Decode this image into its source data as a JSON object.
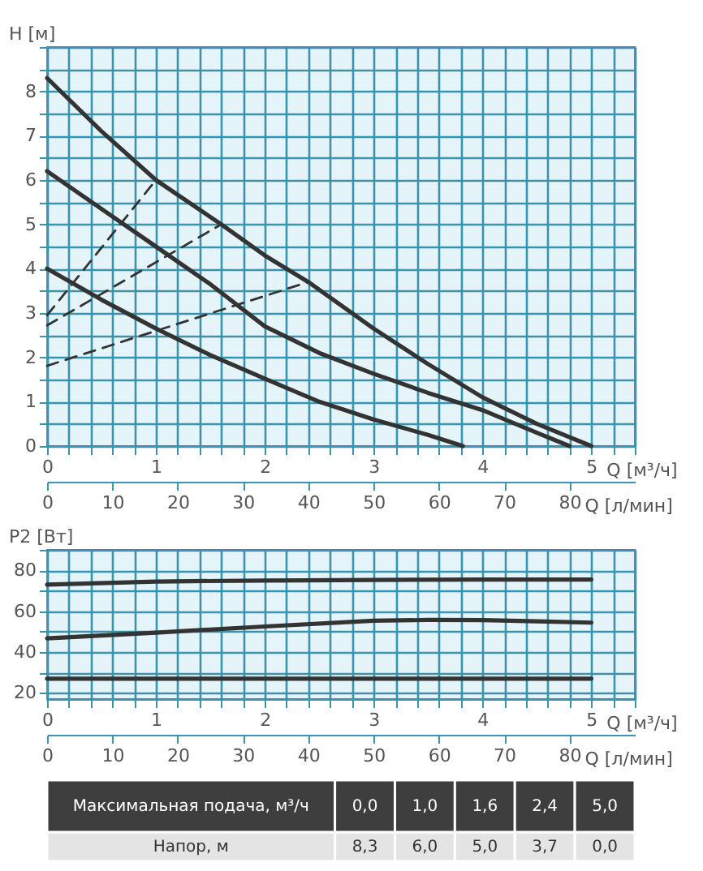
{
  "chart_data": [
    {
      "type": "line",
      "xlabel": "Q [м³/ч]",
      "x2label": "Q [л/мин]",
      "ylabel": "H [м]",
      "grid": true,
      "line_style": "solid",
      "xlim": [
        0,
        5.4
      ],
      "xticks": [
        0,
        {
          "value": 0.2,
          "label": null
        },
        {
          "value": 0.4,
          "label": null
        },
        {
          "value": 0.6,
          "label": null
        },
        {
          "value": 0.8,
          "label": null
        },
        1,
        {
          "value": 1.2,
          "label": null
        },
        {
          "value": 1.4,
          "label": null
        },
        {
          "value": 1.6,
          "label": null
        },
        {
          "value": 1.8,
          "label": null
        },
        2,
        {
          "value": 2.2,
          "label": null
        },
        {
          "value": 2.4,
          "label": null
        },
        {
          "value": 2.6,
          "label": null
        },
        {
          "value": 2.8,
          "label": null
        },
        3,
        {
          "value": 3.2,
          "label": null
        },
        {
          "value": 3.4,
          "label": null
        },
        {
          "value": 3.6,
          "label": null
        },
        {
          "value": 3.8,
          "label": null
        },
        4,
        {
          "value": 4.2,
          "label": null
        },
        {
          "value": 4.4,
          "label": null
        },
        {
          "value": 4.6,
          "label": null
        },
        {
          "value": 4.8,
          "label": null
        },
        5,
        {
          "value": 5.2,
          "label": null
        },
        {
          "value": 5.4,
          "label": null
        }
      ],
      "x2lim": [
        0,
        90
      ],
      "x2ticks": [
        0,
        10,
        20,
        30,
        40,
        50,
        60,
        70,
        80
      ],
      "ylim": [
        0,
        9
      ],
      "yticks": [
        0,
        {
          "value": 0.5,
          "label": null
        },
        1,
        {
          "value": 1.5,
          "label": null
        },
        2,
        {
          "value": 2.5,
          "label": null
        },
        3,
        {
          "value": 3.5,
          "label": null
        },
        4,
        {
          "value": 4.5,
          "label": null
        },
        5,
        {
          "value": 5.5,
          "label": null
        },
        6,
        {
          "value": 6.5,
          "label": null
        },
        7,
        {
          "value": 7.5,
          "label": null
        },
        8,
        {
          "value": 8.5,
          "label": null
        },
        {
          "value": 9,
          "label": null
        }
      ],
      "series": [
        {
          "color": "#333333",
          "x": [
            0,
            0.5,
            1,
            1.6,
            2,
            2.4,
            3,
            3.5,
            4,
            4.5,
            5
          ],
          "values": [
            8.3,
            7.1,
            6.0,
            5.0,
            4.3,
            3.7,
            2.65,
            1.85,
            1.1,
            0.5,
            0.0
          ]
        },
        {
          "color": "#333333",
          "x": [
            0,
            0.5,
            1,
            1.5,
            2,
            2.5,
            3,
            3.5,
            4,
            4.5,
            4.8
          ],
          "values": [
            6.2,
            5.35,
            4.5,
            3.65,
            2.7,
            2.1,
            1.63,
            1.2,
            0.81,
            0.3,
            0.0
          ]
        },
        {
          "color": "#333333",
          "x": [
            0,
            0.5,
            1,
            1.5,
            2,
            2.5,
            3,
            3.5,
            3.82
          ],
          "values": [
            4.0,
            3.3,
            2.65,
            2.05,
            1.52,
            1.0,
            0.6,
            0.25,
            0.0
          ]
        },
        {
          "color": "#333333",
          "line_style": "dashed",
          "x": [
            0,
            1.0
          ],
          "values": [
            2.95,
            6.0
          ]
        },
        {
          "color": "#333333",
          "line_style": "dashed",
          "x": [
            0,
            1.6
          ],
          "values": [
            2.72,
            5.0
          ]
        },
        {
          "color": "#333333",
          "line_style": "dashed",
          "x": [
            0,
            2.4
          ],
          "values": [
            1.81,
            3.7
          ]
        }
      ]
    },
    {
      "type": "line",
      "xlabel": "Q [м³/ч]",
      "x2label": "Q [л/мин]",
      "ylabel": "P2 [Вт]",
      "grid": true,
      "line_style": "solid",
      "xlim": [
        0,
        5.4
      ],
      "xticks": [
        0,
        {
          "value": 0.2,
          "label": null
        },
        {
          "value": 0.4,
          "label": null
        },
        {
          "value": 0.6,
          "label": null
        },
        {
          "value": 0.8,
          "label": null
        },
        1,
        {
          "value": 1.2,
          "label": null
        },
        {
          "value": 1.4,
          "label": null
        },
        {
          "value": 1.6,
          "label": null
        },
        {
          "value": 1.8,
          "label": null
        },
        2,
        {
          "value": 2.2,
          "label": null
        },
        {
          "value": 2.4,
          "label": null
        },
        {
          "value": 2.6,
          "label": null
        },
        {
          "value": 2.8,
          "label": null
        },
        3,
        {
          "value": 3.2,
          "label": null
        },
        {
          "value": 3.4,
          "label": null
        },
        {
          "value": 3.6,
          "label": null
        },
        {
          "value": 3.8,
          "label": null
        },
        4,
        {
          "value": 4.2,
          "label": null
        },
        {
          "value": 4.4,
          "label": null
        },
        {
          "value": 4.6,
          "label": null
        },
        {
          "value": 4.8,
          "label": null
        },
        5,
        {
          "value": 5.2,
          "label": null
        },
        {
          "value": 5.4,
          "label": null
        }
      ],
      "x2lim": [
        0,
        90
      ],
      "x2ticks": [
        0,
        10,
        20,
        30,
        40,
        50,
        60,
        70,
        80
      ],
      "ylim": [
        17,
        90
      ],
      "yticks": [
        20,
        {
          "value": 30,
          "label": null
        },
        40,
        {
          "value": 50,
          "label": null
        },
        60,
        {
          "value": 70,
          "label": null
        },
        80,
        {
          "value": 90,
          "label": null
        }
      ],
      "series": [
        {
          "color": "#333333",
          "x": [
            0,
            1,
            2,
            3,
            4,
            5
          ],
          "values": [
            73,
            74.5,
            75,
            75.3,
            75.5,
            75.5
          ]
        },
        {
          "color": "#333333",
          "x": [
            0,
            1,
            2,
            3,
            3.5,
            4,
            4.5,
            5
          ],
          "values": [
            46.7,
            49.5,
            52.5,
            55.3,
            55.7,
            55.6,
            55,
            54.4
          ]
        },
        {
          "color": "#333333",
          "x": [
            0,
            5
          ],
          "values": [
            27,
            27
          ]
        }
      ]
    },
    {
      "type": "other",
      "annotations": [
        "Максимальная подача, м³/ч",
        "0,0",
        "1,0",
        "1,6",
        "2,4",
        "5,0",
        "Напор, м",
        "8,3",
        "6,0",
        "5,0",
        "3,7",
        "0,0"
      ]
    }
  ]
}
